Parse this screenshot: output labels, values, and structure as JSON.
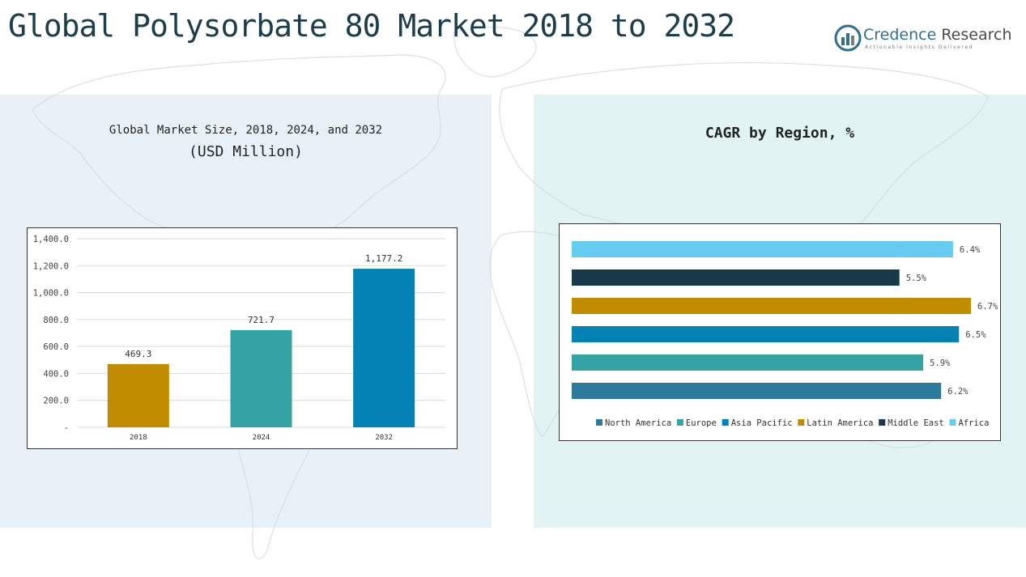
{
  "header": {
    "title": "Global Polysorbate 80 Market 2018 to 2032",
    "logo_name_a": "Credence",
    "logo_name_b": "Research",
    "logo_tagline": "Actionable Insights Delivered"
  },
  "left_chart_heading": {
    "line1": "Global Market Size, 2018, 2024, and 2032",
    "line2": "(USD Million)"
  },
  "right_chart_heading": "CAGR by Region, %",
  "colors": {
    "gold": "#c08c00",
    "teal": "#34a3a3",
    "blue": "#0382b3",
    "navy": "#18394a",
    "sky": "#66ccf2",
    "steel": "#2e7a9c",
    "grid": "#d9d9d9"
  },
  "chart_data": [
    {
      "type": "bar",
      "title": "Global Market Size, 2018, 2024, and 2032",
      "subtitle": "(USD Million)",
      "categories": [
        "2018",
        "2024",
        "2032"
      ],
      "values": [
        469.3,
        721.7,
        1177.2
      ],
      "value_labels": [
        "469.3",
        "721.7",
        "1,177.2"
      ],
      "bar_colors": [
        "#c08c00",
        "#34a3a3",
        "#0382b3"
      ],
      "ylim": [
        0,
        1400
      ],
      "yticks": [
        0,
        200,
        400,
        600,
        800,
        1000,
        1200,
        1400
      ],
      "ytick_labels": [
        "-",
        "200.0",
        "400.0",
        "600.0",
        "800.0",
        "1,000.0",
        "1,200.0",
        "1,400.0"
      ],
      "grid": true
    },
    {
      "type": "bar",
      "orientation": "horizontal",
      "title": "CAGR by Region, %",
      "categories": [
        "North America",
        "Europe",
        "Asia Pacific",
        "Latin America",
        "Middle East",
        "Africa"
      ],
      "values": [
        6.2,
        5.9,
        6.5,
        6.7,
        5.5,
        6.4
      ],
      "value_labels": [
        "6.2%",
        "5.9%",
        "6.5%",
        "6.7%",
        "5.5%",
        "6.4%"
      ],
      "bar_colors": [
        "#2e7a9c",
        "#34a3a3",
        "#0382b3",
        "#c08c00",
        "#18394a",
        "#66ccf2"
      ],
      "xlim": [
        0,
        6.7
      ],
      "legend": "bottom",
      "grid": false
    }
  ]
}
